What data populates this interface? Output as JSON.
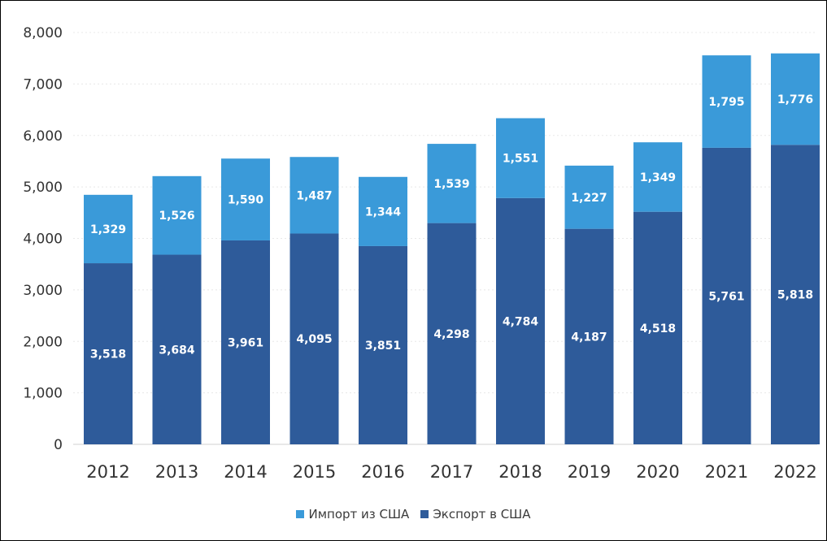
{
  "chart_data": {
    "type": "bar",
    "stacked": true,
    "categories": [
      "2012",
      "2013",
      "2014",
      "2015",
      "2016",
      "2017",
      "2018",
      "2019",
      "2020",
      "2021",
      "2022"
    ],
    "series": [
      {
        "name": "Экспорт в США",
        "color": "#2e5b9a",
        "values": [
          3518,
          3684,
          3961,
          4095,
          3851,
          4298,
          4784,
          4187,
          4518,
          5761,
          5818
        ],
        "labels": [
          "3,518",
          "3,684",
          "3,961",
          "4,095",
          "3,851",
          "4,298",
          "4,784",
          "4,187",
          "4,518",
          "5,761",
          "5,818"
        ]
      },
      {
        "name": "Импорт из США",
        "color": "#3a9ad9",
        "values": [
          1329,
          1526,
          1590,
          1487,
          1344,
          1539,
          1551,
          1227,
          1349,
          1795,
          1776
        ],
        "labels": [
          "1,329",
          "1,526",
          "1,590",
          "1,487",
          "1,344",
          "1,539",
          "1,551",
          "1,227",
          "1,349",
          "1,795",
          "1,776"
        ]
      }
    ],
    "ylim": [
      0,
      8000
    ],
    "yticks": [
      0,
      1000,
      2000,
      3000,
      4000,
      5000,
      6000,
      7000,
      8000
    ],
    "ytick_labels": [
      "0",
      "1,000",
      "2,000",
      "3,000",
      "4,000",
      "5,000",
      "6,000",
      "7,000",
      "8,000"
    ],
    "grid": true,
    "legend_position": "bottom-center",
    "title": "",
    "xlabel": "",
    "ylabel": ""
  },
  "legend": {
    "import_label": "Импорт из США",
    "export_label": "Экспорт в США"
  },
  "colors": {
    "export": "#2e5b9a",
    "import": "#3a9ad9",
    "axis_text": "#333333",
    "grid": "#e8e8e8"
  }
}
